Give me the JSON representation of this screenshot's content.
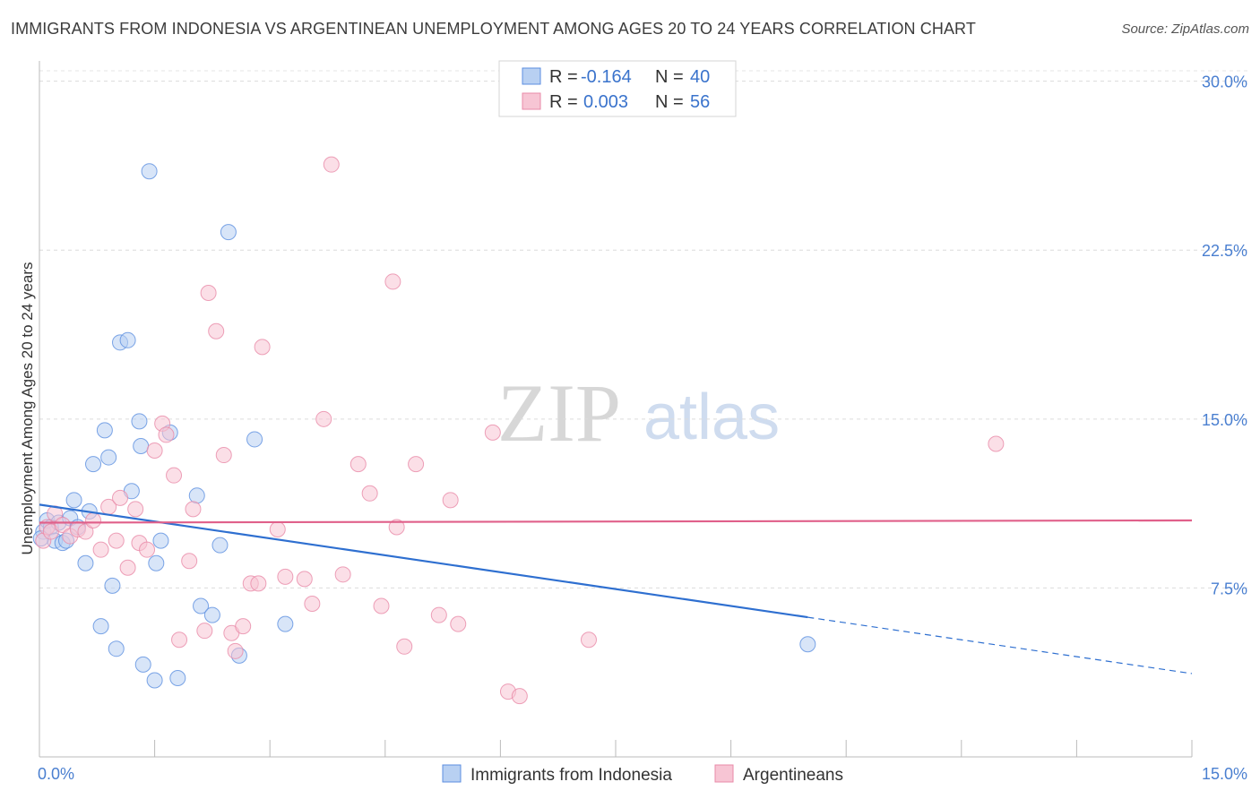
{
  "header": {
    "title": "IMMIGRANTS FROM INDONESIA VS ARGENTINEAN UNEMPLOYMENT AMONG AGES 20 TO 24 YEARS CORRELATION CHART",
    "source": "Source: ZipAtlas.com"
  },
  "watermark": {
    "zip": "ZIP",
    "atlas": "atlas"
  },
  "colors": {
    "blue": "#5b8ee0",
    "blue_fill": "#b8d0f2",
    "blue_line": "#2e6fd0",
    "pink": "#e88aa8",
    "pink_fill": "#f7c5d4",
    "pink_line": "#e0608a",
    "axis_text": "#4a7fd0"
  },
  "legend": {
    "r_label": "R =",
    "n_label": "N =",
    "rows": [
      {
        "series": "blue",
        "r": "-0.164",
        "n": "40"
      },
      {
        "series": "pink",
        "r": "0.003",
        "n": "56"
      }
    ]
  },
  "bottom_legend": [
    "Immigrants from Indonesia",
    "Argentineans"
  ],
  "chart_data": {
    "type": "scatter",
    "title": "IMMIGRANTS FROM INDONESIA VS ARGENTINEAN UNEMPLOYMENT AMONG AGES 20 TO 24 YEARS CORRELATION CHART",
    "xlabel": "",
    "ylabel": "Unemployment Among Ages 20 to 24 years",
    "xlim": [
      0,
      15
    ],
    "ylim": [
      0,
      30.9
    ],
    "x_tick_labels": [
      "0.0%",
      "15.0%"
    ],
    "y_ticks": [
      7.5,
      15.0,
      22.5,
      30.0
    ],
    "y_tick_labels": [
      "7.5%",
      "15.0%",
      "22.5%",
      "30.0%"
    ],
    "series": [
      {
        "name": "Immigrants from Indonesia",
        "color": "blue",
        "trend": {
          "x0": 0.0,
          "y0": 11.2,
          "x1": 10.0,
          "y1": 6.2,
          "dash_to_x": 15.0,
          "dash_to_y": 3.7
        },
        "points": [
          [
            0.05,
            10.0
          ],
          [
            0.1,
            10.5
          ],
          [
            0.15,
            10.2
          ],
          [
            0.2,
            9.6
          ],
          [
            0.25,
            10.4
          ],
          [
            0.3,
            9.5
          ],
          [
            0.35,
            9.6
          ],
          [
            0.4,
            10.6
          ],
          [
            0.45,
            11.4
          ],
          [
            0.5,
            10.2
          ],
          [
            0.6,
            8.6
          ],
          [
            0.65,
            10.9
          ],
          [
            0.7,
            13.0
          ],
          [
            0.8,
            5.8
          ],
          [
            0.85,
            14.5
          ],
          [
            0.9,
            13.3
          ],
          [
            0.95,
            7.6
          ],
          [
            1.0,
            4.8
          ],
          [
            1.05,
            18.4
          ],
          [
            1.15,
            18.5
          ],
          [
            1.2,
            11.8
          ],
          [
            1.3,
            14.9
          ],
          [
            1.32,
            13.8
          ],
          [
            1.35,
            4.1
          ],
          [
            1.43,
            26.0
          ],
          [
            1.5,
            3.4
          ],
          [
            1.52,
            8.6
          ],
          [
            1.58,
            9.6
          ],
          [
            1.7,
            14.4
          ],
          [
            1.8,
            3.5
          ],
          [
            2.05,
            11.6
          ],
          [
            2.1,
            6.7
          ],
          [
            2.25,
            6.3
          ],
          [
            2.35,
            9.4
          ],
          [
            2.46,
            23.3
          ],
          [
            2.6,
            4.5
          ],
          [
            2.8,
            14.1
          ],
          [
            3.2,
            5.9
          ],
          [
            10.0,
            5.0
          ],
          [
            0.02,
            9.7
          ]
        ]
      },
      {
        "name": "Argentineans",
        "color": "pink",
        "trend": {
          "x0": 0.0,
          "y0": 10.4,
          "x1": 15.0,
          "y1": 10.5
        },
        "points": [
          [
            0.05,
            9.6
          ],
          [
            0.1,
            10.2
          ],
          [
            0.15,
            10.0
          ],
          [
            0.2,
            10.8
          ],
          [
            0.3,
            10.3
          ],
          [
            0.4,
            9.8
          ],
          [
            0.5,
            10.1
          ],
          [
            0.6,
            10.0
          ],
          [
            0.7,
            10.5
          ],
          [
            0.8,
            9.2
          ],
          [
            0.9,
            11.1
          ],
          [
            1.0,
            9.6
          ],
          [
            1.05,
            11.5
          ],
          [
            1.15,
            8.4
          ],
          [
            1.25,
            11.0
          ],
          [
            1.3,
            9.5
          ],
          [
            1.4,
            9.2
          ],
          [
            1.5,
            13.6
          ],
          [
            1.6,
            14.8
          ],
          [
            1.65,
            14.3
          ],
          [
            1.75,
            12.5
          ],
          [
            1.82,
            5.2
          ],
          [
            1.95,
            8.7
          ],
          [
            2.0,
            11.0
          ],
          [
            2.15,
            5.6
          ],
          [
            2.2,
            20.6
          ],
          [
            2.3,
            18.9
          ],
          [
            2.4,
            13.4
          ],
          [
            2.5,
            5.5
          ],
          [
            2.55,
            4.7
          ],
          [
            2.65,
            5.8
          ],
          [
            2.75,
            7.7
          ],
          [
            2.85,
            7.7
          ],
          [
            2.9,
            18.2
          ],
          [
            3.1,
            10.1
          ],
          [
            3.2,
            8.0
          ],
          [
            3.45,
            7.9
          ],
          [
            3.55,
            6.8
          ],
          [
            3.7,
            15.0
          ],
          [
            3.8,
            26.3
          ],
          [
            3.95,
            8.1
          ],
          [
            4.15,
            13.0
          ],
          [
            4.3,
            11.7
          ],
          [
            4.45,
            6.7
          ],
          [
            4.6,
            21.1
          ],
          [
            4.65,
            10.2
          ],
          [
            4.75,
            4.9
          ],
          [
            4.9,
            13.0
          ],
          [
            5.2,
            6.3
          ],
          [
            5.35,
            11.4
          ],
          [
            5.45,
            5.9
          ],
          [
            5.9,
            14.4
          ],
          [
            6.1,
            2.9
          ],
          [
            6.25,
            2.7
          ],
          [
            7.15,
            5.2
          ],
          [
            12.45,
            13.9
          ]
        ]
      }
    ]
  }
}
